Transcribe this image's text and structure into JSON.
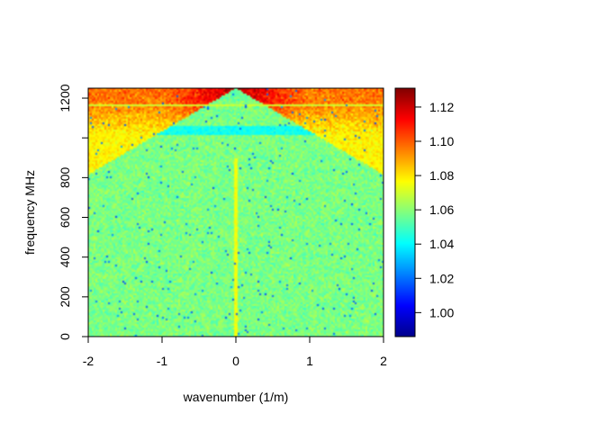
{
  "chart_data": {
    "type": "heatmap",
    "title": "",
    "xlabel": "wavenumber (1/m)",
    "ylabel": "frequency MHz",
    "xlim": [
      -2,
      2
    ],
    "ylim": [
      0,
      1250
    ],
    "x_ticks": [
      -2,
      -1,
      0,
      1,
      2
    ],
    "x_tick_labels": [
      "-2",
      "-1",
      "0",
      "1",
      "2"
    ],
    "y_ticks": [
      0,
      200,
      400,
      600,
      800,
      1000,
      1200
    ],
    "y_tick_labels": [
      "0",
      "200",
      "400",
      "600",
      "800",
      "",
      "1200"
    ],
    "colorbar": {
      "range": [
        0.986,
        1.131
      ],
      "ticks": [
        1.0,
        1.02,
        1.04,
        1.06,
        1.08,
        1.1,
        1.12
      ],
      "tick_labels": [
        "1.00",
        "1.02",
        "1.04",
        "1.06",
        "1.08",
        "1.10",
        "1.12"
      ],
      "colormap": [
        "#00008b",
        "#0000ff",
        "#0080ff",
        "#00ffff",
        "#80ff80",
        "#ffff00",
        "#ff8000",
        "#ff0000",
        "#800000"
      ]
    },
    "features": {
      "background_level": 1.058,
      "light_cone_slope_mhz_per_inv_m": 218,
      "light_cone_edge_at_k2_mhz": 815,
      "inside_cone_level": 1.078,
      "peak_region_freq_range_mhz": [
        1020,
        1250
      ],
      "peak_level": 1.12,
      "outside_cone_high_freq_band_mhz": [
        1010,
        1060
      ],
      "outside_cone_high_freq_level": 1.043,
      "horizontal_line_freq_mhz": 1165,
      "horizontal_line_level": 1.07,
      "vertical_line_k": 0,
      "vertical_line_level": 1.075
    }
  }
}
